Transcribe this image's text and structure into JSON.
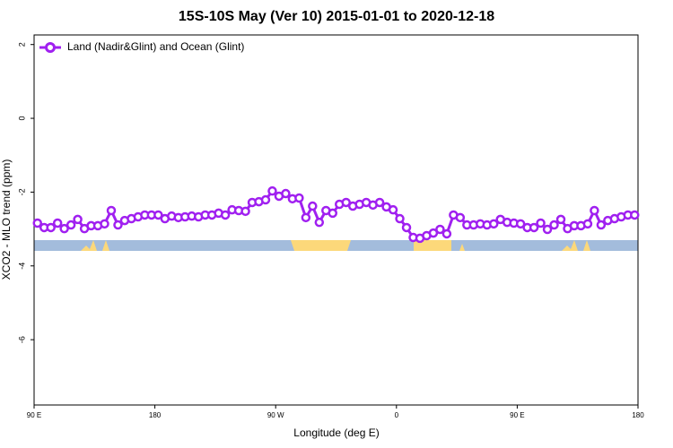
{
  "chart_data": {
    "type": "line",
    "title": "15S-10S May (Ver 10)   2015-01-01 to 2020-12-18",
    "x_label": "Longitude (deg E)",
    "y_label": "XCO2 - MLO trend (ppm)",
    "x": [
      92.5,
      97.5,
      102.5,
      107.5,
      112.5,
      117.5,
      122.5,
      127.5,
      132.5,
      137.5,
      142.5,
      147.5,
      152.5,
      157.5,
      162.5,
      167.5,
      172.5,
      177.5,
      182.5,
      187.5,
      192.5,
      197.5,
      202.5,
      207.5,
      212.5,
      217.5,
      222.5,
      227.5,
      232.5,
      237.5,
      242.5,
      247.5,
      252.5,
      257.5,
      262.5,
      267.5,
      272.5,
      277.5,
      282.5,
      287.5,
      292.5,
      297.5,
      302.5,
      307.5,
      312.5,
      317.5,
      322.5,
      327.5,
      332.5,
      337.5,
      342.5,
      347.5,
      352.5,
      357.5,
      362.5,
      367.5,
      372.5,
      377.5,
      382.5,
      387.5,
      392.5,
      397.5,
      402.5,
      407.5,
      412.5,
      417.5,
      422.5,
      427.5,
      432.5,
      437.5,
      442.5,
      447.5,
      452.5,
      457.5,
      462.5,
      467.5,
      472.5,
      477.5,
      482.5,
      487.5,
      492.5,
      497.5,
      502.5,
      507.5,
      512.5,
      517.5,
      522.5,
      527.5,
      532.5,
      537.5
    ],
    "series": [
      {
        "name": "Land (Nadir&Glint) and Ocean (Glint)",
        "color": "#a020f0",
        "values": [
          -2.84,
          -2.96,
          -2.96,
          -2.84,
          -2.99,
          -2.89,
          -2.74,
          -2.99,
          -2.91,
          -2.91,
          -2.86,
          -2.5,
          -2.89,
          -2.77,
          -2.72,
          -2.67,
          -2.62,
          -2.62,
          -2.62,
          -2.72,
          -2.65,
          -2.69,
          -2.67,
          -2.65,
          -2.67,
          -2.62,
          -2.62,
          -2.57,
          -2.62,
          -2.48,
          -2.5,
          -2.52,
          -2.28,
          -2.26,
          -2.21,
          -1.97,
          -2.11,
          -2.04,
          -2.18,
          -2.16,
          -2.69,
          -2.38,
          -2.82,
          -2.5,
          -2.57,
          -2.33,
          -2.28,
          -2.38,
          -2.33,
          -2.28,
          -2.35,
          -2.28,
          -2.4,
          -2.48,
          -2.72,
          -2.96,
          -3.23,
          -3.25,
          -3.18,
          -3.11,
          -3.01,
          -3.13,
          -2.62,
          -2.69,
          -2.89,
          -2.89,
          -2.86,
          -2.89,
          -2.86,
          -2.74,
          -2.82,
          -2.84,
          -2.86,
          -2.96,
          -2.96,
          -2.84,
          -3.01,
          -2.89,
          -2.74,
          -2.99,
          -2.91,
          -2.91,
          -2.86,
          -2.5,
          -2.89,
          -2.77,
          -2.72,
          -2.67,
          -2.62,
          -2.62
        ]
      }
    ],
    "xlim": [
      90,
      540
    ],
    "xticks": [
      {
        "value": 90,
        "label": "90 E"
      },
      {
        "value": 180,
        "label": "180"
      },
      {
        "value": 270,
        "label": "90 W"
      },
      {
        "value": 360,
        "label": "0"
      },
      {
        "value": 450,
        "label": "90 E"
      },
      {
        "value": 540,
        "label": "180"
      }
    ],
    "ylim": [
      -7.77,
      2.26
    ],
    "yticks": [
      -6,
      -4,
      -2,
      0,
      2
    ],
    "legend": "top-left"
  }
}
